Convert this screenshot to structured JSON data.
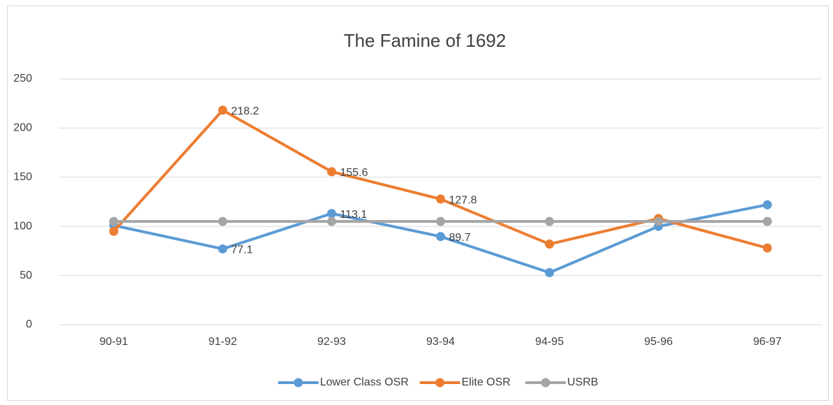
{
  "chart_data": {
    "type": "line",
    "title": "The Famine of 1692",
    "categories": [
      "90-91",
      "91-92",
      "92-93",
      "93-94",
      "94-95",
      "95-96",
      "96-97"
    ],
    "series": [
      {
        "name": "Lower Class OSR",
        "color": "#5b9bd5",
        "values": [
          101,
          77.1,
          113.1,
          89.7,
          53,
          100,
          122
        ],
        "value_labels": [
          null,
          "77.1",
          "113.1",
          "89.7",
          null,
          null,
          null
        ]
      },
      {
        "name": "Elite OSR",
        "color": "#ed7d31",
        "values": [
          95,
          218.2,
          155.6,
          127.8,
          82,
          108,
          78
        ],
        "value_labels": [
          null,
          "218.2",
          "155.6",
          "127.8",
          null,
          null,
          null
        ]
      },
      {
        "name": "USRB",
        "color": "#a5a5a5",
        "values": [
          105,
          105,
          105,
          105,
          105,
          105,
          105
        ]
      }
    ],
    "ylim": [
      0,
      250
    ],
    "yticks": [
      0,
      50,
      100,
      150,
      200,
      250
    ],
    "grid": true,
    "legend": "bottom"
  }
}
